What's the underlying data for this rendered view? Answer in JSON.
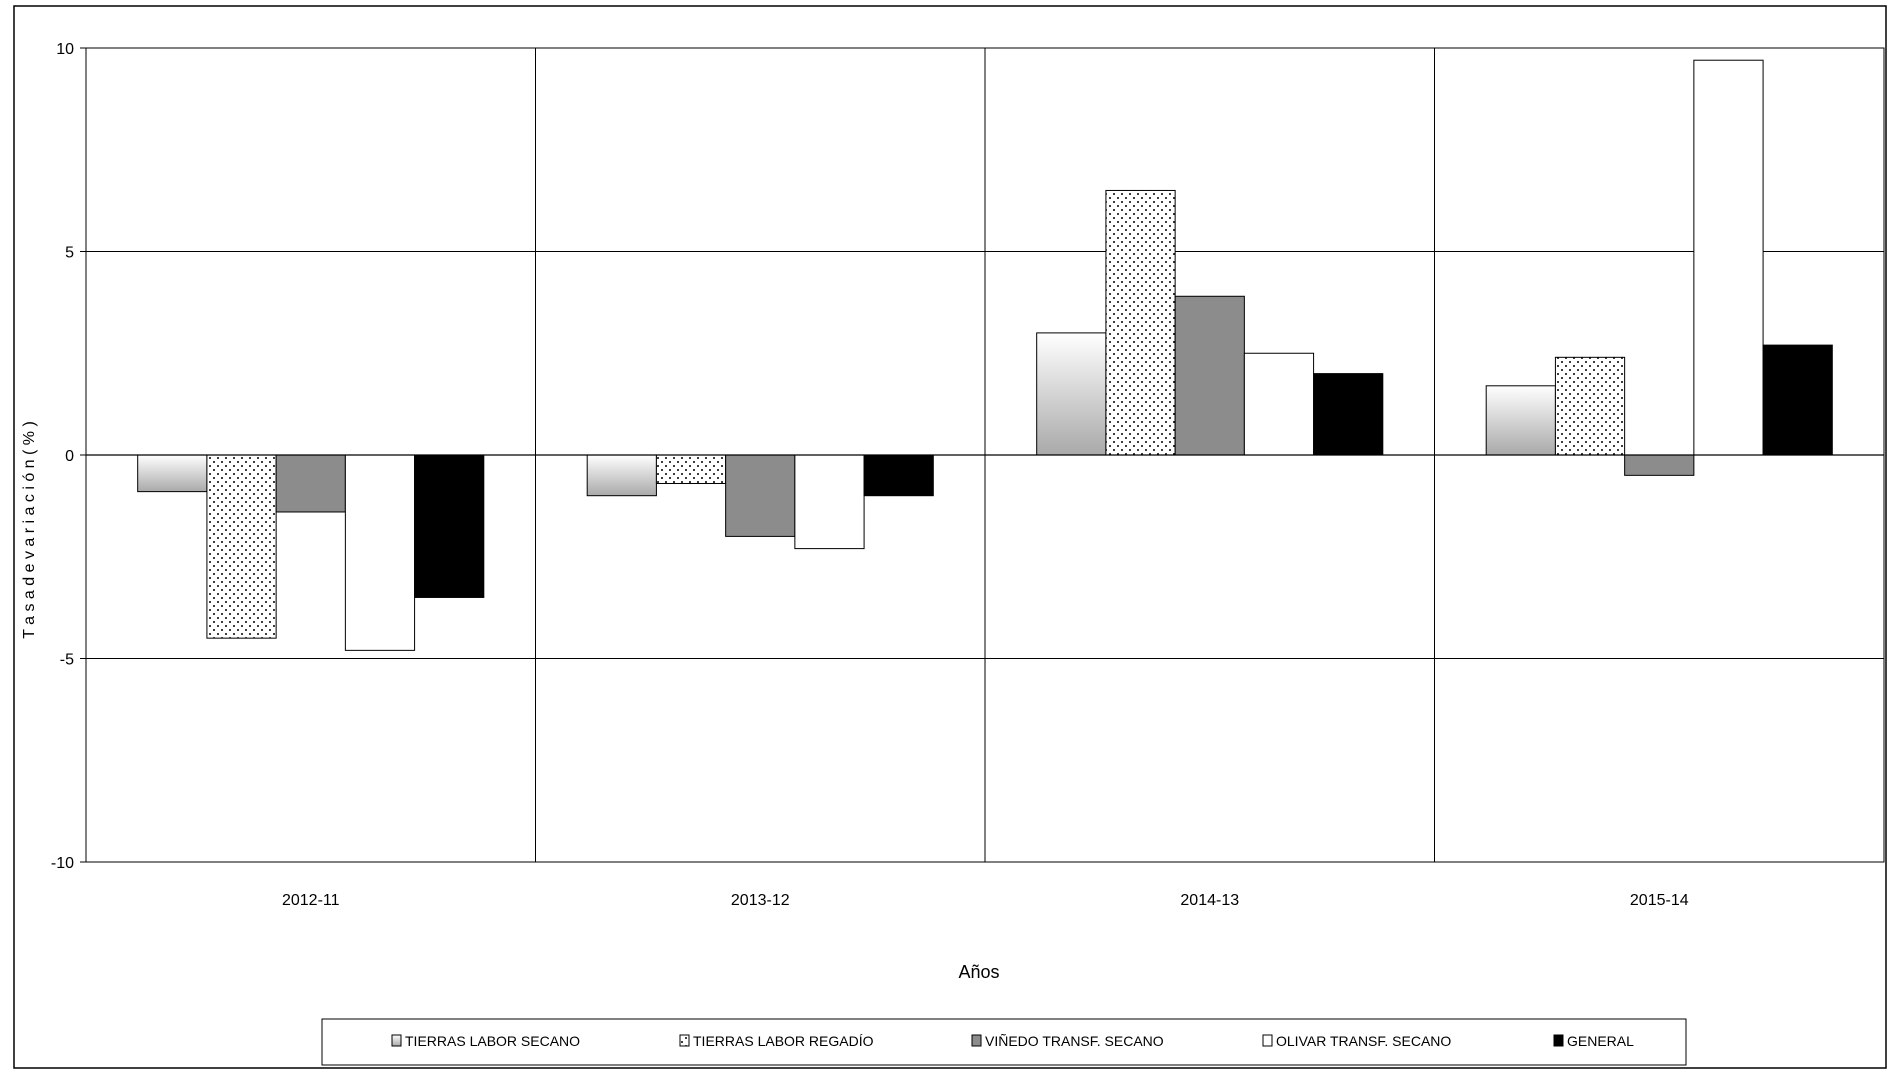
{
  "chart_data": {
    "type": "bar",
    "title": "",
    "xlabel": "Años",
    "ylabel": "T a s a  d e  v a r i a c i ó n  ( % )",
    "ylim": [
      -10,
      10
    ],
    "yticks": [
      10,
      5,
      0,
      -5,
      -10
    ],
    "categories": [
      "2012-11",
      "2013-12",
      "2014-13",
      "2015-14"
    ],
    "grid": true,
    "legend_position": "bottom",
    "series": [
      {
        "name": "TIERRAS LABOR SECANO",
        "values": [
          -0.9,
          -1.0,
          3.0,
          1.7
        ],
        "fill": "gradient"
      },
      {
        "name": "TIERRAS LABOR REGADÍO",
        "values": [
          -4.5,
          -0.7,
          6.5,
          2.4
        ],
        "fill": "dots"
      },
      {
        "name": "VIÑEDO TRANSF. SECANO",
        "values": [
          -1.4,
          -2.0,
          3.9,
          -0.5
        ],
        "fill": "#8c8c8c"
      },
      {
        "name": "OLIVAR TRANSF. SECANO",
        "values": [
          -4.8,
          -2.3,
          2.5,
          9.7
        ],
        "fill": "#ffffff"
      },
      {
        "name": "GENERAL",
        "values": [
          -3.5,
          -1.0,
          2.0,
          2.7
        ],
        "fill": "#000000"
      }
    ]
  }
}
